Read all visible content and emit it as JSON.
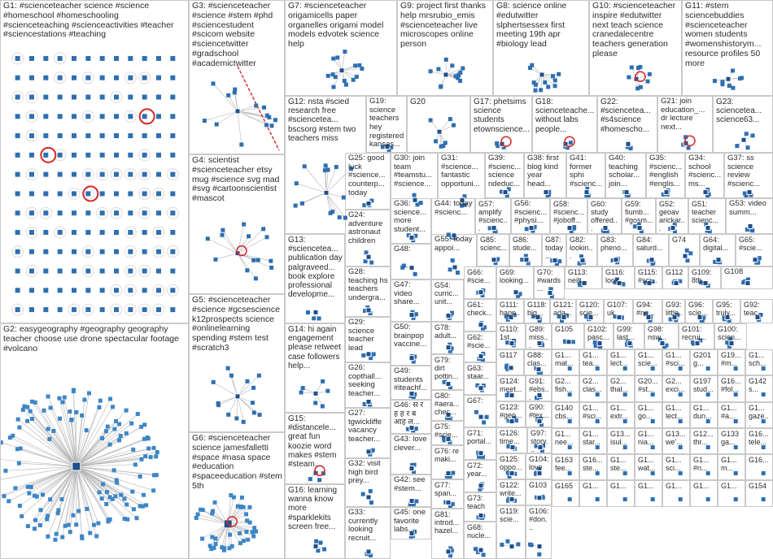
{
  "groups": [
    {
      "id": "G1",
      "label": "G1: #scienceteacher science #science #homeschool #homeschooling #scienceteaching #scienceactivities #teacher #sciencestations #teaching",
      "viz": "grid"
    },
    {
      "id": "G2",
      "label": "G2: easygeography #geography geography teacher choose use drone spectacular footage #volcano",
      "viz": "hub"
    },
    {
      "id": "G3",
      "label": "G3: #scienceteacher #science #stem #phd #sciencestudent #scicom website #sciencetwitter #gradschool #academictwitter",
      "viz": "tree"
    },
    {
      "id": "G4",
      "label": "G4: scientist #scienceteacher etsy mug #science svg mad #svg #cartoonscientist #mascot",
      "viz": "cluster"
    },
    {
      "id": "G5",
      "label": "G5: #scienceteacher #science #gcsescience k12prospects science #onlinelearning spending #stem test #scratch3",
      "viz": "cluster"
    },
    {
      "id": "G6",
      "label": "G6: #scienceteacher science jamesfalletti #space #nasa space #education #spaceeducation #stem 5th",
      "viz": "hub"
    },
    {
      "id": "G7",
      "label": "G7: #scienceteacher origamicells paper organelles origami model models edvotek science help",
      "viz": "cluster"
    },
    {
      "id": "G9",
      "label": "G9: project first thanks help mrsrubio_emis #scienceteacher live microscopes online person",
      "viz": "cluster"
    },
    {
      "id": "G8",
      "label": "G8: science online #edutwitter slphertsessex first meeting 19th apr #biology lead",
      "viz": "cluster"
    },
    {
      "id": "G10",
      "label": "G10: #scienceteacher inspire #edutwitter next teach science cranedalecentre teachers generation please",
      "viz": "cluster"
    },
    {
      "id": "G11",
      "label": "G11: #stem sciencebuddies #scienceteacher women students #womenshistorym... resource profiles 50 more",
      "viz": "cluster"
    },
    {
      "id": "G12",
      "label": "G12: nsta #scied research free #scienceteа... bscsorg #stem two teachers miss",
      "viz": "cluster"
    },
    {
      "id": "G19",
      "label": "G19: science teachers hey registered kansas...",
      "viz": "cluster"
    },
    {
      "id": "G20",
      "label": "G20",
      "viz": "cluster"
    },
    {
      "id": "G17",
      "label": "G17: phetsims science students etownscience...",
      "viz": "cluster"
    },
    {
      "id": "G18",
      "label": "G18: scienceteache... without labs people...",
      "viz": "cluster"
    },
    {
      "id": "G22",
      "label": "G22: #scienceteа... #s4science #homescho...",
      "viz": "cluster"
    },
    {
      "id": "G21",
      "label": "G21: join education_... dr lecture next...",
      "viz": "cluster"
    },
    {
      "id": "G23",
      "label": "G23: scienceteа... science63...",
      "viz": "cluster"
    },
    {
      "id": "G13",
      "label": "G13: #scienceteа... publication day palgraveed... book explore professional developme...",
      "viz": "cluster"
    },
    {
      "id": "G25",
      "label": "G25: good luck #science... counterp... today",
      "viz": "cluster"
    },
    {
      "id": "G30",
      "label": "G30: join team #teamstu... #science...",
      "viz": "cluster"
    },
    {
      "id": "G31",
      "label": "G31: #science... fantastic opportuni...",
      "viz": "cluster"
    },
    {
      "id": "G39",
      "label": "G39: #scienc... science ndeduc...",
      "viz": "cluster"
    },
    {
      "id": "G38",
      "label": "G38: first blog kind year head...",
      "viz": "cluster"
    },
    {
      "id": "G41",
      "label": "G41: former sphi #scienc...",
      "viz": "cluster"
    },
    {
      "id": "G40",
      "label": "G40: teaching scholar... join...",
      "viz": "cluster"
    },
    {
      "id": "G35",
      "label": "G35: #scienc... #english #englis...",
      "viz": "cluster"
    },
    {
      "id": "G34",
      "label": "G34: school #scienc... ms...",
      "viz": "cluster"
    },
    {
      "id": "G37",
      "label": "G37: ss science review #scienc...",
      "viz": "cluster"
    },
    {
      "id": "G24",
      "label": "G24: adventure astronaut children",
      "viz": "cluster"
    },
    {
      "id": "G36",
      "label": "G36: science... more student...",
      "viz": "cluster"
    },
    {
      "id": "G44",
      "label": "G44: today #scienc...",
      "viz": "cluster"
    },
    {
      "id": "G57",
      "label": "G57: amplify #scienc...",
      "viz": "cluster"
    },
    {
      "id": "G56",
      "label": "G56: #scienc... #physi...",
      "viz": "cluster"
    },
    {
      "id": "G58",
      "label": "G58: #scienc... #joboff...",
      "viz": "cluster"
    },
    {
      "id": "G60",
      "label": "G60: study offered...",
      "viz": "cluster"
    },
    {
      "id": "G59",
      "label": "G59: fiumb... #gosm...",
      "viz": "cluster"
    },
    {
      "id": "G52",
      "label": "G52: geoav arickar...",
      "viz": "cluster"
    },
    {
      "id": "G51",
      "label": "G51: teacher scienc...",
      "viz": "cluster"
    },
    {
      "id": "G53",
      "label": "G53: video summ...",
      "viz": "cluster"
    },
    {
      "id": "G28",
      "label": "G28: teaching hs teachers undergra...",
      "viz": "cluster"
    },
    {
      "id": "G48",
      "label": "G48:",
      "viz": "cluster"
    },
    {
      "id": "G55",
      "label": "G55: today appoi...",
      "viz": "cluster"
    },
    {
      "id": "G85",
      "label": "G85: scienc...",
      "viz": "cluster"
    },
    {
      "id": "G86",
      "label": "G86: stude...",
      "viz": "cluster"
    },
    {
      "id": "G87",
      "label": "G87: today...",
      "viz": "cluster"
    },
    {
      "id": "G82",
      "label": "G82: lookin...",
      "viz": "cluster"
    },
    {
      "id": "G83",
      "label": "G83: pheno...",
      "viz": "cluster"
    },
    {
      "id": "G84",
      "label": "G84: saturd...",
      "viz": "cluster"
    },
    {
      "id": "G74",
      "label": "G74",
      "viz": "cluster"
    },
    {
      "id": "G64",
      "label": "G64: digital...",
      "viz": "cluster"
    },
    {
      "id": "G65",
      "label": "G65: #scie...",
      "viz": "cluster"
    },
    {
      "id": "G47",
      "label": "G47: video share...",
      "viz": "cluster"
    },
    {
      "id": "G54",
      "label": "G54: curric... unit...",
      "viz": "cluster"
    },
    {
      "id": "G66",
      "label": "G66: #scie...",
      "viz": "cluster"
    },
    {
      "id": "G69",
      "label": "G69: looking...",
      "viz": "cluster"
    },
    {
      "id": "G70",
      "label": "G70: #wards...",
      "viz": "cluster"
    },
    {
      "id": "G113",
      "label": "G113: neilt...",
      "viz": "cluster"
    },
    {
      "id": "G116",
      "label": "G116: look...",
      "viz": "cluster"
    },
    {
      "id": "G115",
      "label": "G115: #sci...",
      "viz": "cluster"
    },
    {
      "id": "G112",
      "label": "G112",
      "viz": "cluster"
    },
    {
      "id": "G109",
      "label": "G109: 8th...",
      "viz": "cluster"
    },
    {
      "id": "G108",
      "label": "G108",
      "viz": "cluster"
    },
    {
      "id": "G29",
      "label": "G29: science teacher lead",
      "viz": "cluster"
    },
    {
      "id": "G61",
      "label": "G61: check...",
      "viz": "cluster"
    },
    {
      "id": "G111",
      "label": "G111: happ...",
      "viz": "cluster"
    },
    {
      "id": "G118",
      "label": "G118: big...",
      "viz": "cluster"
    },
    {
      "id": "G121",
      "label": "G121: ada...",
      "viz": "cluster"
    },
    {
      "id": "G120",
      "label": "G120: scie...",
      "viz": "cluster"
    },
    {
      "id": "G107",
      "label": "G107: uk",
      "viz": "cluster"
    },
    {
      "id": "G94",
      "label": "G94: #nq...",
      "viz": "cluster"
    },
    {
      "id": "G93",
      "label": "G93: little...",
      "viz": "cluster"
    },
    {
      "id": "G96",
      "label": "G96: scie...",
      "viz": "cluster"
    },
    {
      "id": "G95",
      "label": "G95: truly...",
      "viz": "cluster"
    },
    {
      "id": "G92",
      "label": "G92: teac...",
      "viz": "cluster"
    },
    {
      "id": "G50",
      "label": "G50: brainpop vaccine...",
      "viz": "cluster"
    },
    {
      "id": "G78",
      "label": "G78: adult...",
      "viz": "cluster"
    },
    {
      "id": "G62",
      "label": "G62: #scie...",
      "viz": "cluster"
    },
    {
      "id": "G110",
      "label": "G110: 1st...",
      "viz": "cluster"
    },
    {
      "id": "G89",
      "label": "G89: miss...",
      "viz": "cluster"
    },
    {
      "id": "G105",
      "label": "G105",
      "viz": "cluster"
    },
    {
      "id": "G102",
      "label": "G102: pasc...",
      "viz": "cluster"
    },
    {
      "id": "G99",
      "label": "G99: last...",
      "viz": "cluster"
    },
    {
      "id": "G98",
      "label": "G98: nsw...",
      "viz": "cluster"
    },
    {
      "id": "G101",
      "label": "G101: recrui...",
      "viz": "cluster"
    },
    {
      "id": "G100",
      "label": "G100: scien...",
      "viz": "cluster"
    },
    {
      "id": "G14",
      "label": "G14: hi again engagement please retweet case followers help...",
      "viz": "cluster"
    },
    {
      "id": "G26",
      "label": "G26: copthall... seeking teacher...",
      "viz": "cluster"
    },
    {
      "id": "G49",
      "label": "G49: students #iteachf...",
      "viz": "cluster"
    },
    {
      "id": "G79",
      "label": "G79: dirt pottin...",
      "viz": "cluster"
    },
    {
      "id": "G63",
      "label": "G63: staar...",
      "viz": "cluster"
    },
    {
      "id": "G117",
      "label": "G117",
      "viz": "cluster"
    },
    {
      "id": "G88",
      "label": "G88: clas...",
      "viz": "cluster"
    },
    {
      "id": "G124",
      "label": "G124: meet...",
      "viz": "cluster"
    },
    {
      "id": "G91",
      "label": "G91: #ebs...",
      "viz": "cluster"
    },
    {
      "id": "G80",
      "label": "G80: #aera... chec...",
      "viz": "cluster"
    },
    {
      "id": "G46",
      "label": "G46: स र ह ह र ब आह ल...",
      "viz": "cluster"
    },
    {
      "id": "G67",
      "label": "G67:",
      "viz": "cluster"
    },
    {
      "id": "G123",
      "label": "G123: #geo...",
      "viz": "cluster"
    },
    {
      "id": "G90",
      "label": "G90: #tex...",
      "viz": "cluster"
    },
    {
      "id": "G15",
      "label": "G15: #distancele... great fun koozie word makes #stem #steam...",
      "viz": "cluster"
    },
    {
      "id": "G27",
      "label": "G27: tgwickliffe vacancy teacher...",
      "viz": "cluster"
    },
    {
      "id": "G75",
      "label": "G75: #scie...",
      "viz": "cluster"
    },
    {
      "id": "G71",
      "label": "G71: portal...",
      "viz": "cluster"
    },
    {
      "id": "G126",
      "label": "G126: time...",
      "viz": "cluster"
    },
    {
      "id": "G97",
      "label": "G97: story...",
      "viz": "cluster"
    },
    {
      "id": "G43",
      "label": "G43: love clever...",
      "viz": "cluster"
    },
    {
      "id": "G72",
      "label": "G72: year...",
      "viz": "cluster"
    },
    {
      "id": "G76",
      "label": "G76: re maki...",
      "viz": "cluster"
    },
    {
      "id": "G125",
      "label": "G125: oppo...",
      "viz": "cluster"
    },
    {
      "id": "G104",
      "label": "G104: love",
      "viz": "cluster"
    },
    {
      "id": "G32",
      "label": "G32: visit high bird prey...",
      "viz": "cluster"
    },
    {
      "id": "G42",
      "label": "G42: see #stem...",
      "viz": "cluster"
    },
    {
      "id": "G77",
      "label": "G77: span...",
      "viz": "cluster"
    },
    {
      "id": "G73",
      "label": "G73: teach",
      "viz": "cluster"
    },
    {
      "id": "G122",
      "label": "G122: write...",
      "viz": "cluster"
    },
    {
      "id": "G103",
      "label": "G103",
      "viz": "cluster"
    },
    {
      "id": "G16",
      "label": "G16: learning wanna know more #sparklekits screen free...",
      "viz": "cluster"
    },
    {
      "id": "G33",
      "label": "G33: currently looking recruit...",
      "viz": "cluster"
    },
    {
      "id": "G45",
      "label": "G45: one favorite labs...",
      "viz": "cluster"
    },
    {
      "id": "G81",
      "label": "G81: introd... hazel...",
      "viz": "cluster"
    },
    {
      "id": "G68",
      "label": "G68: nucle...",
      "viz": "cluster"
    },
    {
      "id": "G119",
      "label": "G119: scie...",
      "viz": "cluster"
    },
    {
      "id": "G106",
      "label": "G106: #don...",
      "viz": "cluster"
    }
  ],
  "small_groups": [
    "G1...",
    "G1...",
    "G1...",
    "G1...",
    "G1...",
    "G201",
    "G19...",
    "G1...",
    "G2...",
    "G2...",
    "G2...",
    "G20...",
    "G2...",
    "G197",
    "G16...",
    "G142",
    "G140",
    "G1...",
    "G1...",
    "G1...",
    "G1...",
    "G1...",
    "G1...",
    "G1...",
    "G1...",
    "G1...",
    "G13...",
    "G1...",
    "G13...",
    "G12...",
    "G133",
    "G16...",
    "G163",
    "G16...",
    "G1...",
    "G1...",
    "G1...",
    "G1...",
    "G1...",
    "G16...",
    "G165",
    "G1...",
    "G1...",
    "G1...",
    "G1...",
    "G1...",
    "G1...",
    "G154"
  ],
  "small_group_snippets": [
    "mat...",
    "tea...",
    "lect...",
    "scie...",
    "#sci...",
    "g...",
    "#m...",
    "sch...",
    "fish...",
    "clas...",
    "thal...",
    "#st...",
    "exci...",
    "stud...",
    "#fol...",
    "s...",
    "cbs...",
    "#sci...",
    "extr...",
    "go...",
    "lect...",
    "dun...",
    "#a...",
    "gaze...",
    "nee...",
    "star...",
    "isul...",
    "nia...",
    "we'...",
    "thr...",
    "ga...",
    "tele...",
    "fee...",
    "ste...",
    "ste...",
    "wat...",
    "sci...",
    "#n...",
    "m..."
  ],
  "colors": {
    "group_border": "#c9c9c9",
    "node_blue": "#2f6fb0",
    "edge_gray": "#b5b5b5",
    "self_loop_red": "#d62728",
    "edge_red": "#e03030",
    "g2_node": "#3d86c6"
  }
}
